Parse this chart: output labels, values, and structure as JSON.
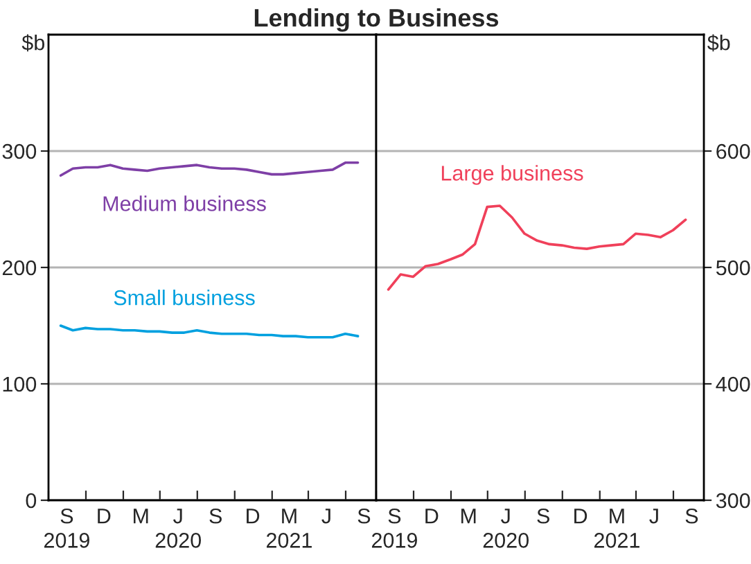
{
  "chart_data": [
    {
      "type": "line",
      "title": "Lending to Business",
      "ylabel": "$b",
      "x": [
        "2019-08-31",
        "2019-09-30",
        "2019-10-31",
        "2019-11-30",
        "2019-12-31",
        "2020-01-31",
        "2020-02-29",
        "2020-03-31",
        "2020-04-30",
        "2020-05-31",
        "2020-06-30",
        "2020-07-31",
        "2020-08-31",
        "2020-09-30",
        "2020-10-31",
        "2020-11-30",
        "2020-12-31",
        "2021-01-31",
        "2021-02-28",
        "2021-03-31",
        "2021-04-30",
        "2021-05-31",
        "2021-06-30",
        "2021-07-31",
        "2021-08-31"
      ],
      "series": [
        {
          "name": "Medium business",
          "color": "#7e3fa6",
          "values": [
            279,
            285,
            286,
            286,
            288,
            285,
            284,
            283,
            285,
            286,
            287,
            288,
            286,
            285,
            285,
            284,
            282,
            280,
            280,
            281,
            282,
            283,
            284,
            290,
            290
          ]
        },
        {
          "name": "Small business",
          "color": "#00a0df",
          "values": [
            150,
            146,
            148,
            147,
            147,
            146,
            146,
            145,
            145,
            144,
            144,
            146,
            144,
            143,
            143,
            143,
            142,
            142,
            141,
            141,
            140,
            140,
            140,
            143,
            141
          ]
        }
      ],
      "xlim": [
        "2019-08-01",
        "2021-10-15"
      ],
      "xticks": [
        {
          "value": "2019-08-01",
          "label": null
        },
        {
          "value": "2019-11-01",
          "label": null
        },
        {
          "value": "2020-02-01",
          "label": null
        },
        {
          "value": "2020-05-01",
          "label": null
        },
        {
          "value": "2020-08-01",
          "label": null
        },
        {
          "value": "2020-11-01",
          "label": null
        },
        {
          "value": "2021-02-01",
          "label": null
        },
        {
          "value": "2021-05-01",
          "label": null
        },
        {
          "value": "2021-08-01",
          "label": null
        },
        {
          "value": "2019-09-15",
          "label": "S\n2019"
        },
        {
          "value": "2019-12-15",
          "label": "D"
        },
        {
          "value": "2020-03-15",
          "label": "M"
        },
        {
          "value": "2020-06-15",
          "label": "J\n2020"
        },
        {
          "value": "2020-09-15",
          "label": "S"
        },
        {
          "value": "2020-12-15",
          "label": "D"
        },
        {
          "value": "2021-03-15",
          "label": "M\n2021"
        },
        {
          "value": "2021-06-15",
          "label": "J"
        },
        {
          "value": "2021-09-15",
          "label": "S"
        }
      ],
      "ylim": [
        0,
        400
      ],
      "yticks": [
        0,
        100,
        200,
        300
      ],
      "grid": "y",
      "legend": false
    },
    {
      "type": "line",
      "ylabel": "$b",
      "x": [
        "2019-08-31",
        "2019-09-30",
        "2019-10-31",
        "2019-11-30",
        "2019-12-31",
        "2020-01-31",
        "2020-02-29",
        "2020-03-31",
        "2020-04-30",
        "2020-05-31",
        "2020-06-30",
        "2020-07-31",
        "2020-08-31",
        "2020-09-30",
        "2020-10-31",
        "2020-11-30",
        "2020-12-31",
        "2021-01-31",
        "2021-02-28",
        "2021-03-31",
        "2021-04-30",
        "2021-05-31",
        "2021-06-30",
        "2021-07-31",
        "2021-08-31"
      ],
      "series": [
        {
          "name": "Large business",
          "color": "#f0405a",
          "values": [
            481,
            494,
            492,
            501,
            503,
            507,
            511,
            520,
            552,
            553,
            543,
            529,
            523,
            520,
            519,
            517,
            516,
            518,
            519,
            520,
            529,
            528,
            526,
            532,
            541
          ]
        }
      ],
      "xlim": [
        "2019-08-01",
        "2021-10-15"
      ],
      "xticks": [
        {
          "value": "2019-08-01",
          "label": null
        },
        {
          "value": "2019-11-01",
          "label": null
        },
        {
          "value": "2020-02-01",
          "label": null
        },
        {
          "value": "2020-05-01",
          "label": null
        },
        {
          "value": "2020-08-01",
          "label": null
        },
        {
          "value": "2020-11-01",
          "label": null
        },
        {
          "value": "2021-02-01",
          "label": null
        },
        {
          "value": "2021-05-01",
          "label": null
        },
        {
          "value": "2021-08-01",
          "label": null
        },
        {
          "value": "2019-09-15",
          "label": "S\n2019"
        },
        {
          "value": "2019-12-15",
          "label": "D"
        },
        {
          "value": "2020-03-15",
          "label": "M"
        },
        {
          "value": "2020-06-15",
          "label": "J\n2020"
        },
        {
          "value": "2020-09-15",
          "label": "S"
        },
        {
          "value": "2020-12-15",
          "label": "D"
        },
        {
          "value": "2021-03-15",
          "label": "M\n2021"
        },
        {
          "value": "2021-06-15",
          "label": "J"
        },
        {
          "value": "2021-09-15",
          "label": "S"
        }
      ],
      "ylim": [
        300,
        700
      ],
      "yticks": [
        300,
        400,
        500,
        600
      ],
      "grid": "y",
      "legend": false
    }
  ]
}
